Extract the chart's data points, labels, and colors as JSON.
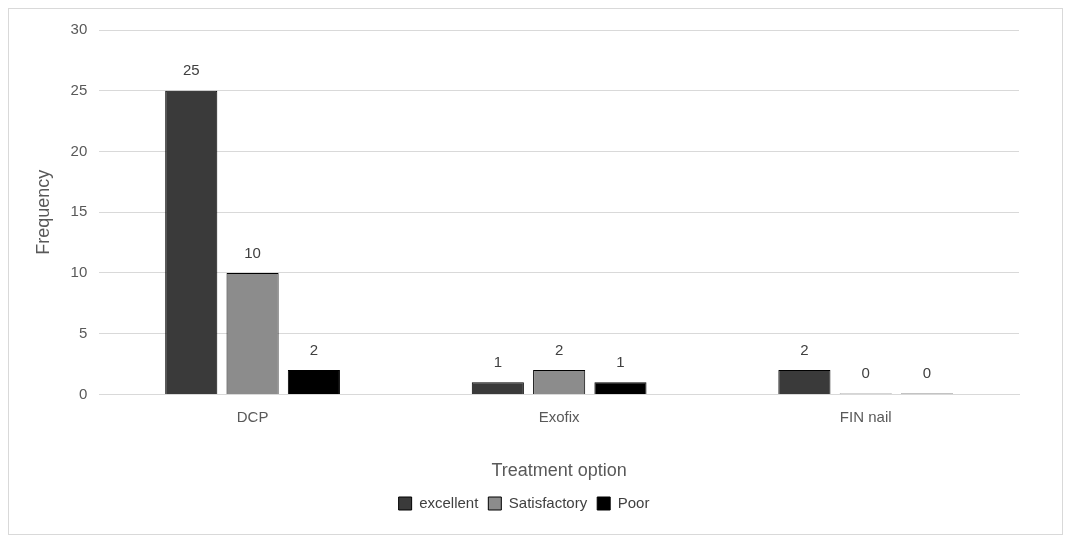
{
  "chart_data": {
    "type": "bar",
    "xlabel": "Treatment option",
    "ylabel": "Frequency",
    "categories": [
      "DCP",
      "Exofix",
      "FIN nail"
    ],
    "series": [
      {
        "name": "excellent",
        "color": "#3a3a3a",
        "values": [
          25,
          1,
          2
        ]
      },
      {
        "name": "Satisfactory",
        "color": "#8c8c8c",
        "values": [
          10,
          2,
          0
        ]
      },
      {
        "name": "Poor",
        "color": "#000000",
        "values": [
          2,
          1,
          0
        ]
      }
    ],
    "ylim": [
      0,
      30
    ],
    "yticks": [
      0,
      5,
      10,
      15,
      20,
      25,
      30
    ],
    "grid": "y",
    "legend": "bottom",
    "data_labels": true
  }
}
